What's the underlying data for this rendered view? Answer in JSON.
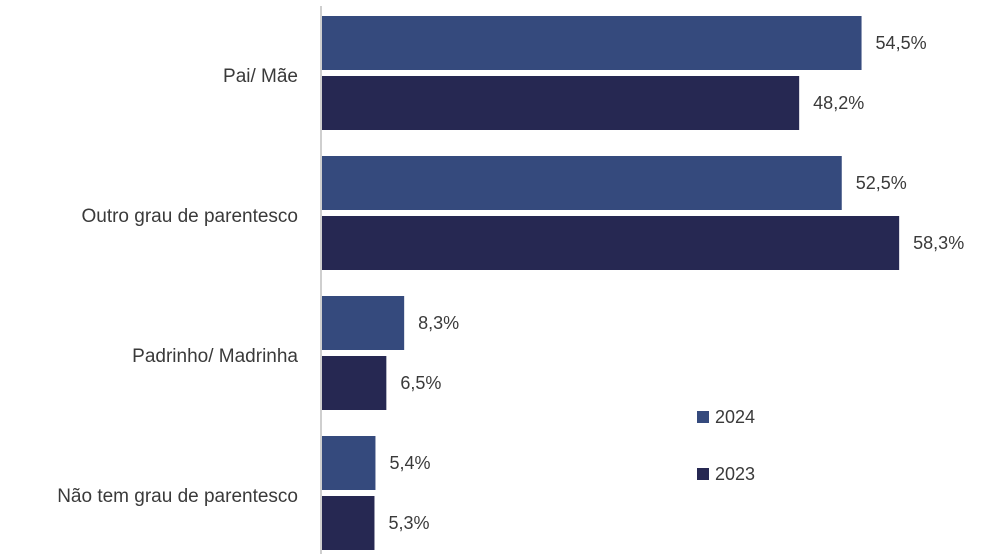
{
  "chart_data": {
    "type": "bar",
    "orientation": "horizontal",
    "title": "",
    "xlabel": "",
    "ylabel": "",
    "categories": [
      "Pai/ Mãe",
      "Outro grau de parentesco",
      "Padrinho/ Madrinha",
      "Não tem grau de parentesco"
    ],
    "series": [
      {
        "name": "2024",
        "color": "#354a7d",
        "values": [
          54.5,
          52.5,
          8.3,
          5.4
        ],
        "labels": [
          "54,5%",
          "52,5%",
          "8,3%",
          "5,4%"
        ]
      },
      {
        "name": "2023",
        "color": "#262852",
        "values": [
          48.2,
          58.3,
          6.5,
          5.3
        ],
        "labels": [
          "48,2%",
          "58,3%",
          "6,5%",
          "5,3%"
        ]
      }
    ],
    "xlim": [
      0,
      60
    ],
    "grid": false,
    "legend_position": "bottom-right",
    "axis_color": "#bfbfbf"
  }
}
